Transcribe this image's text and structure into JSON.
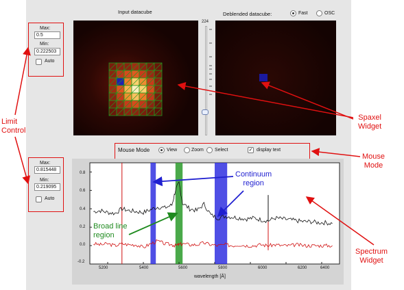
{
  "panels": {
    "input_title": "Input datacube",
    "deblended_title": "Deblended datacube:",
    "deblend_options": [
      {
        "label": "Fast",
        "selected": true
      },
      {
        "label": "OSC",
        "selected": false
      }
    ]
  },
  "limits_top": {
    "max_label": "Max:",
    "max_value": "0.5",
    "min_label": "Min:",
    "min_value": "0.222503",
    "auto_label": "Auto"
  },
  "limits_bottom": {
    "max_label": "Max:",
    "max_value": "0.815448",
    "min_label": "Min:",
    "min_value": "0.219095",
    "auto_label": "Auto"
  },
  "slider": {
    "top_label": "224"
  },
  "mouse_mode": {
    "label": "Mouse Mode",
    "options": [
      {
        "label": "View",
        "selected": true
      },
      {
        "label": "Zoom",
        "selected": false
      },
      {
        "label": "Select",
        "selected": false
      }
    ],
    "display_text_label": "display text",
    "display_text_checked": true
  },
  "spectrum": {
    "xlabel": "wavelength [Å]",
    "x_ticks": [
      "5200",
      "5400",
      "5600",
      "5800",
      "6000",
      "6200",
      "6400"
    ],
    "y_ticks": [
      "0.8",
      "0.6",
      "0.4",
      "0.2",
      "0.0",
      "-0.2"
    ]
  },
  "annotations": {
    "limit_control": "Limit\nControl",
    "spaxel_widget": "Spaxel\nWidget",
    "mouse_mode": "Mouse\nMode",
    "spectrum_widget": "Spectrum\nWidget",
    "continuum_region": "Continuum\nregion",
    "broad_line_region": "Broad line\nregion"
  },
  "colors": {
    "annotation_red": "#e01010",
    "continuum_blue": "#3030e0",
    "broad_line_green": "#2a9a2a"
  },
  "chart_data": {
    "type": "line",
    "x": [
      5120,
      5160,
      5200,
      5240,
      5280,
      5320,
      5360,
      5400,
      5440,
      5480,
      5520,
      5560,
      5580,
      5600,
      5620,
      5660,
      5700,
      5740,
      5780,
      5820,
      5860,
      5900,
      5940,
      5980,
      6020,
      6060,
      6100,
      6140,
      6180,
      6220,
      6260,
      6300,
      6340,
      6380,
      6420,
      6460
    ],
    "series": [
      {
        "values": [
          0.37,
          0.38,
          0.36,
          0.35,
          0.4,
          0.38,
          0.37,
          0.36,
          0.39,
          0.42,
          0.41,
          0.44,
          0.6,
          0.68,
          0.46,
          0.4,
          0.38,
          0.45,
          0.33,
          0.3,
          0.32,
          0.31,
          0.3,
          0.29,
          0.3,
          0.28,
          0.27,
          0.3,
          0.29,
          0.28,
          0.27,
          0.26,
          0.26,
          0.25,
          0.25,
          0.24
        ]
      },
      {
        "values": [
          0.02,
          0.01,
          0.02,
          0.0,
          0.02,
          0.01,
          0.01,
          -0.02,
          0.02,
          0.05,
          0.02,
          0.01,
          0.0,
          0.01,
          0.02,
          0.01,
          0.01,
          0.03,
          0.01,
          0.0,
          0.01,
          0.0,
          0.01,
          0.0,
          0.0,
          0.01,
          0.0,
          0.01,
          0.0,
          0.0,
          0.01,
          0.0,
          0.0,
          0.0,
          0.0,
          0.0
        ]
      }
    ],
    "spikes": [
      {
        "x": 6100,
        "top": 0.55,
        "bottom": -0.05
      }
    ],
    "vline": 5280,
    "regions": [
      {
        "kind": "continuum",
        "x0": 5440,
        "x1": 5470
      },
      {
        "kind": "broad_line",
        "x0": 5580,
        "x1": 5620
      },
      {
        "kind": "continuum",
        "x0": 5800,
        "x1": 5870
      }
    ],
    "xlim": [
      5100,
      6500
    ],
    "ylim": [
      -0.2,
      0.9
    ],
    "grid": false
  }
}
